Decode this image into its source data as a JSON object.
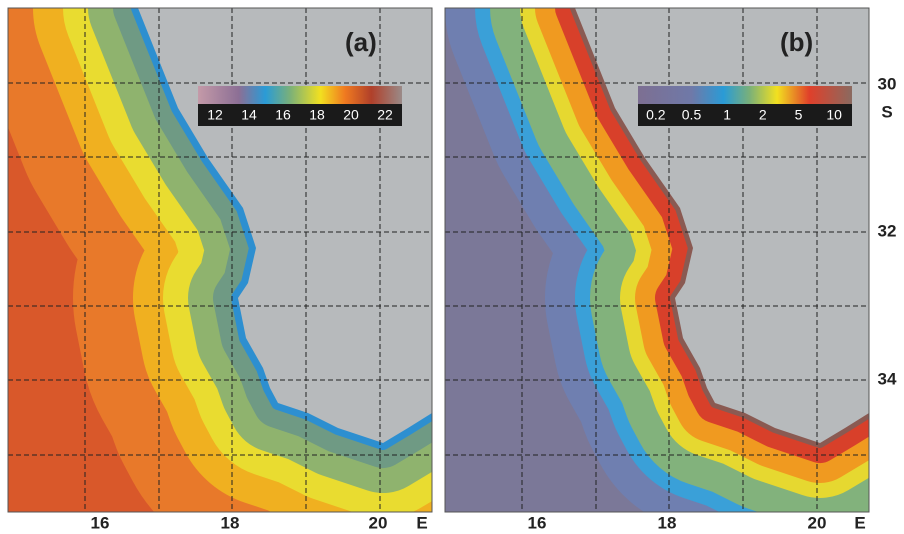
{
  "panels": [
    {
      "label": "(a)",
      "colorbar": [
        "12",
        "14",
        "16",
        "18",
        "20",
        "22"
      ]
    },
    {
      "label": "(b)",
      "colorbar": [
        "0.2",
        "0.5",
        "1",
        "2",
        "5",
        "10"
      ]
    }
  ],
  "x_axis": {
    "labels": [
      "16",
      "18",
      "20"
    ],
    "unit": "E"
  },
  "y_axis": {
    "labels": [
      "30",
      "32",
      "34"
    ],
    "unit": "S"
  }
}
